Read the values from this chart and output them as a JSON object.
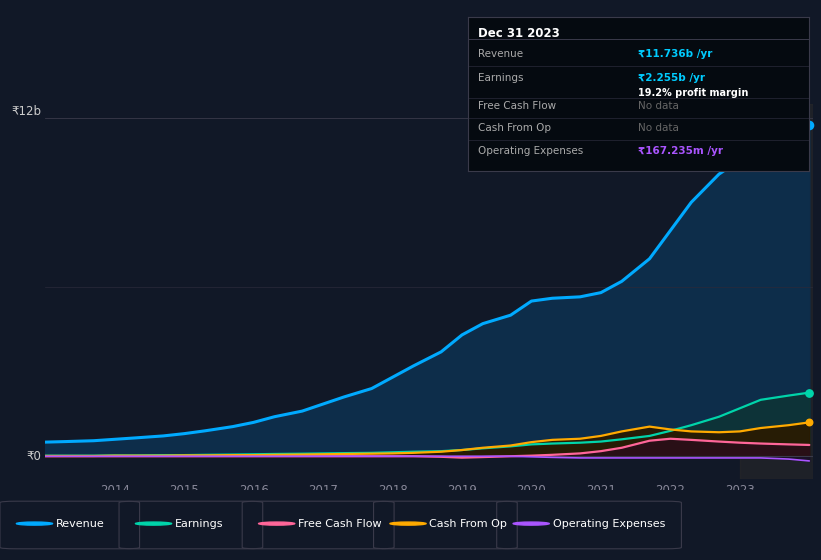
{
  "bg_color": "#111827",
  "plot_bg_color": "#111827",
  "years": [
    2013.0,
    2013.3,
    2013.7,
    2014.0,
    2014.3,
    2014.7,
    2015.0,
    2015.3,
    2015.7,
    2016.0,
    2016.3,
    2016.7,
    2017.0,
    2017.3,
    2017.7,
    2018.0,
    2018.3,
    2018.7,
    2019.0,
    2019.3,
    2019.7,
    2020.0,
    2020.3,
    2020.7,
    2021.0,
    2021.3,
    2021.7,
    2022.0,
    2022.3,
    2022.7,
    2023.0,
    2023.3,
    2023.7,
    2024.0
  ],
  "revenue": [
    0.5,
    0.52,
    0.55,
    0.6,
    0.65,
    0.72,
    0.8,
    0.9,
    1.05,
    1.2,
    1.4,
    1.6,
    1.85,
    2.1,
    2.4,
    2.8,
    3.2,
    3.7,
    4.3,
    4.7,
    5.0,
    5.5,
    5.6,
    5.65,
    5.8,
    6.2,
    7.0,
    8.0,
    9.0,
    10.0,
    10.5,
    11.0,
    11.4,
    11.736
  ],
  "earnings": [
    0.02,
    0.02,
    0.02,
    0.03,
    0.03,
    0.04,
    0.04,
    0.05,
    0.06,
    0.07,
    0.08,
    0.09,
    0.1,
    0.11,
    0.12,
    0.14,
    0.16,
    0.18,
    0.22,
    0.28,
    0.35,
    0.42,
    0.45,
    0.48,
    0.52,
    0.6,
    0.72,
    0.9,
    1.1,
    1.4,
    1.7,
    2.0,
    2.15,
    2.255
  ],
  "free_cash_flow": [
    0.0,
    0.0,
    0.0,
    0.0,
    0.0,
    0.0,
    0.0,
    0.0,
    0.0,
    0.0,
    0.0,
    0.0,
    0.0,
    0.0,
    0.0,
    0.0,
    0.0,
    -0.02,
    -0.05,
    -0.03,
    0.0,
    0.02,
    0.05,
    0.1,
    0.18,
    0.3,
    0.55,
    0.62,
    0.58,
    0.52,
    0.48,
    0.45,
    0.42,
    0.4
  ],
  "cash_from_op": [
    0.01,
    0.01,
    0.01,
    0.02,
    0.02,
    0.02,
    0.03,
    0.03,
    0.04,
    0.04,
    0.05,
    0.06,
    0.07,
    0.08,
    0.09,
    0.1,
    0.12,
    0.16,
    0.22,
    0.3,
    0.38,
    0.5,
    0.58,
    0.62,
    0.72,
    0.88,
    1.05,
    0.95,
    0.88,
    0.85,
    0.88,
    1.0,
    1.1,
    1.2
  ],
  "operating_expenses": [
    0.0,
    0.0,
    0.0,
    0.0,
    0.0,
    0.0,
    0.0,
    0.0,
    0.0,
    0.0,
    0.0,
    0.0,
    0.0,
    0.0,
    0.0,
    0.0,
    0.0,
    0.0,
    0.0,
    0.0,
    0.0,
    -0.02,
    -0.04,
    -0.06,
    -0.06,
    -0.06,
    -0.06,
    -0.06,
    -0.06,
    -0.06,
    -0.06,
    -0.06,
    -0.1,
    -0.167
  ],
  "revenue_color": "#00aaff",
  "earnings_color": "#00d4aa",
  "free_cash_flow_color": "#ff6699",
  "cash_from_op_color": "#ffaa00",
  "operating_expenses_color": "#aa55ff",
  "ylim_min": -0.8,
  "ylim_max": 12.5,
  "xlim_min": 2013.0,
  "xlim_max": 2024.05,
  "xticks": [
    2014,
    2015,
    2016,
    2017,
    2018,
    2019,
    2020,
    2021,
    2022,
    2023
  ],
  "ytick_0_label": "₹0",
  "ytick_12_label": "₹12b",
  "gray_region_start": 2023.0,
  "legend_labels": [
    "Revenue",
    "Earnings",
    "Free Cash Flow",
    "Cash From Op",
    "Operating Expenses"
  ],
  "legend_colors": [
    "#00aaff",
    "#00d4aa",
    "#ff6699",
    "#ffaa00",
    "#aa55ff"
  ],
  "info_box_title": "Dec 31 2023",
  "info_rows": [
    {
      "label": "Revenue",
      "value": "₹11.736b /yr",
      "value_color": "#00ccff",
      "sub": null
    },
    {
      "label": "Earnings",
      "value": "₹2.255b /yr",
      "value_color": "#00ccff",
      "sub": "19.2% profit margin"
    },
    {
      "label": "Free Cash Flow",
      "value": "No data",
      "value_color": "#666666",
      "sub": null
    },
    {
      "label": "Cash From Op",
      "value": "No data",
      "value_color": "#666666",
      "sub": null
    },
    {
      "label": "Operating Expenses",
      "value": "₹167.235m /yr",
      "value_color": "#aa55ff",
      "sub": null
    }
  ]
}
